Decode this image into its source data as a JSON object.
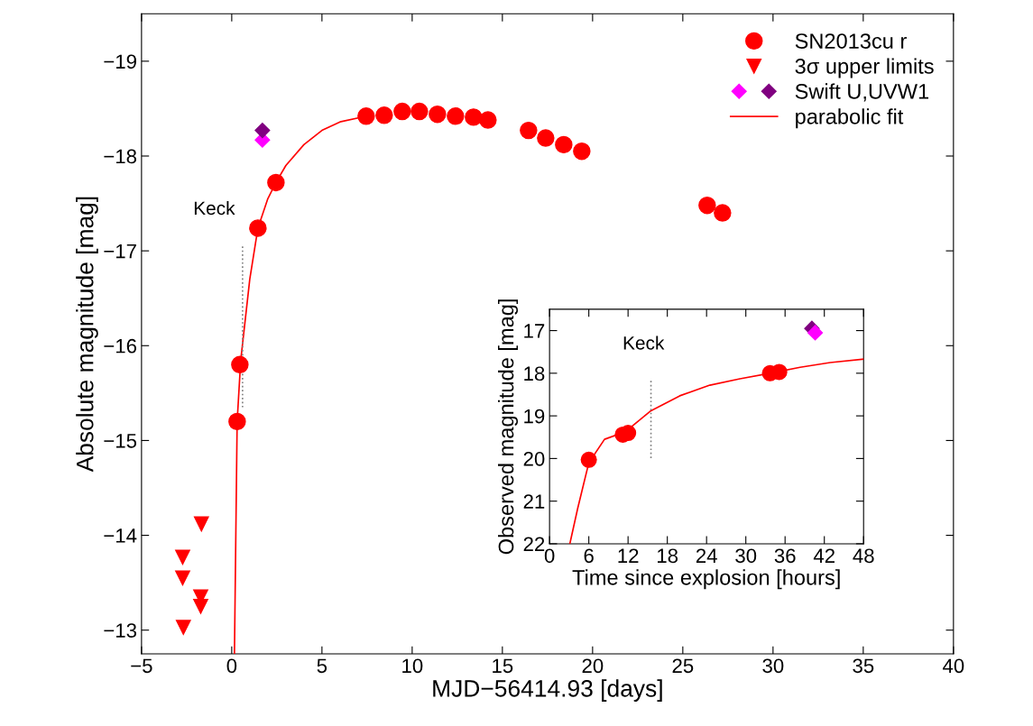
{
  "chart_data": [
    {
      "type": "scatter",
      "xlabel": "MJD−56414.93 [days]",
      "ylabel": "Absolute magnitude [mag]",
      "xlim": [
        -5,
        40
      ],
      "ylim": [
        -12.75,
        -19.5
      ],
      "xticks": [
        {
          "value": -5,
          "label": "−5"
        },
        0,
        5,
        10,
        15,
        20,
        25,
        30,
        35,
        40
      ],
      "yticks": [
        {
          "value": -13,
          "label": "−13"
        },
        {
          "value": -14,
          "label": "−14"
        },
        {
          "value": -15,
          "label": "−15"
        },
        {
          "value": -16,
          "label": "−16"
        },
        {
          "value": -17,
          "label": "−17"
        },
        {
          "value": -18,
          "label": "−18"
        },
        {
          "value": -19,
          "label": "−19"
        }
      ],
      "legend": "top right",
      "annotations": [
        {
          "text": "Keck",
          "x": 0.6,
          "y": -17.05
        }
      ],
      "series": [
        {
          "name": "SN2013cu r",
          "marker": "circle",
          "color": "#ff0000",
          "x": [
            0.3,
            0.45,
            1.45,
            2.45,
            7.45,
            8.45,
            9.45,
            10.4,
            11.4,
            12.4,
            13.4,
            14.2,
            16.45,
            17.4,
            18.4,
            19.4,
            26.35,
            27.2
          ],
          "values": [
            -15.2,
            -15.8,
            -17.24,
            -17.72,
            -18.42,
            -18.43,
            -18.47,
            -18.47,
            -18.44,
            -18.42,
            -18.41,
            -18.38,
            -18.27,
            -18.19,
            -18.12,
            -18.05,
            -17.48,
            -17.4
          ]
        },
        {
          "name": "3σ upper limits",
          "marker": "triangle",
          "color": "#ff0000",
          "x": [
            -1.68,
            -2.72,
            -2.72,
            -1.72,
            -1.72,
            -2.68
          ],
          "values": [
            -14.12,
            -13.77,
            -13.55,
            -13.35,
            -13.25,
            -13.03
          ]
        },
        {
          "name": "Swift U,UVW1",
          "marker": "diamond",
          "colors": [
            "#ff00ff",
            "#800080"
          ],
          "x": [
            1.7,
            1.7
          ],
          "values": [
            -18.17,
            -18.27
          ]
        },
        {
          "name": "parabolic fit",
          "type": "line",
          "marker": "none",
          "line_style": "solid",
          "color": "#ff0000",
          "x": [
            0.15,
            0.3,
            0.5,
            1.0,
            1.45,
            2.0,
            2.45,
            3.0,
            4.0,
            5.0,
            6.0,
            7.2
          ],
          "values": [
            -12.75,
            -15.2,
            -15.85,
            -16.7,
            -17.24,
            -17.55,
            -17.72,
            -17.9,
            -18.12,
            -18.27,
            -18.36,
            -18.41
          ]
        },
        {
          "type": "line",
          "marker": "none",
          "line_style": "dotted",
          "color": "#808080",
          "x": [
            0.6,
            0.6
          ],
          "values": [
            -15.35,
            -17.05
          ]
        }
      ]
    },
    {
      "type": "scatter",
      "xlabel": "Time since explosion [hours]",
      "ylabel": "Observed magnitude [mag]",
      "xlim": [
        0,
        48
      ],
      "ylim": [
        22,
        16.5
      ],
      "xticks": [
        0,
        6,
        12,
        18,
        24,
        30,
        36,
        42,
        48
      ],
      "yticks": [
        17,
        18,
        19,
        20,
        21,
        22
      ],
      "annotations": [
        {
          "text": "Keck",
          "x": 15.5,
          "y": 18.18
        }
      ],
      "series": [
        {
          "marker": "circle",
          "color": "#ff0000",
          "x": [
            6.0,
            11.2,
            12.0,
            33.7,
            35.1
          ],
          "values": [
            20.03,
            19.44,
            19.4,
            18.0,
            17.97
          ]
        },
        {
          "marker": "diamond",
          "colors": [
            "#800080",
            "#ff00ff"
          ],
          "x": [
            40.1,
            40.6
          ],
          "values": [
            16.95,
            17.05
          ]
        },
        {
          "type": "line",
          "marker": "none",
          "line_style": "solid",
          "color": "#ff0000",
          "x": [
            3.1,
            4.3,
            6.0,
            8.4,
            11.6,
            15.5,
            19.9,
            24.5,
            29.1,
            33.7,
            38.3,
            42.9,
            48
          ],
          "values": [
            22.0,
            21.17,
            20.1,
            19.55,
            19.37,
            18.88,
            18.53,
            18.28,
            18.13,
            18.0,
            17.86,
            17.75,
            17.67
          ]
        },
        {
          "type": "line",
          "marker": "none",
          "line_style": "dotted",
          "color": "#808080",
          "x": [
            15.5,
            15.5
          ],
          "values": [
            18.18,
            20.04
          ]
        }
      ]
    }
  ]
}
